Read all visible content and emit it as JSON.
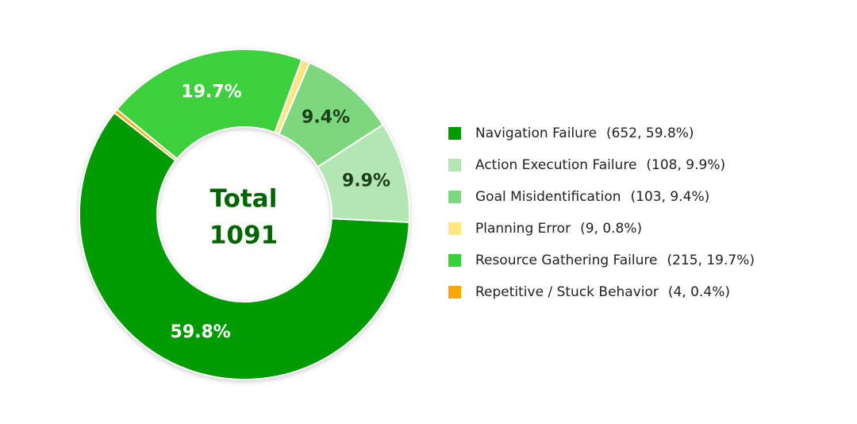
{
  "chart_data": {
    "type": "donut",
    "center_label": "Total",
    "total": 1091,
    "categories": [
      "Navigation Failure",
      "Action Execution Failure",
      "Goal Misidentification",
      "Planning Error",
      "Resource Gathering Failure",
      "Repetitive / Stuck Behavior"
    ],
    "counts": [
      652,
      108,
      103,
      9,
      215,
      4
    ],
    "values": [
      59.8,
      9.9,
      9.4,
      0.8,
      19.7,
      0.4
    ],
    "value_labels": [
      "59.8%",
      "9.9%",
      "9.4%",
      null,
      "19.7%",
      null
    ],
    "legend_labels": [
      "(652, 59.8%)",
      "(108, 9.9%)",
      "(103, 9.4%)",
      "(9, 0.8%)",
      "(215, 19.7%)",
      "(4, 0.4%)"
    ],
    "colors": [
      "#009b00",
      "#b3e6b3",
      "#7dd87d",
      "#ffe680",
      "#3ccf3c",
      "#f9a800"
    ],
    "legend": "right"
  }
}
